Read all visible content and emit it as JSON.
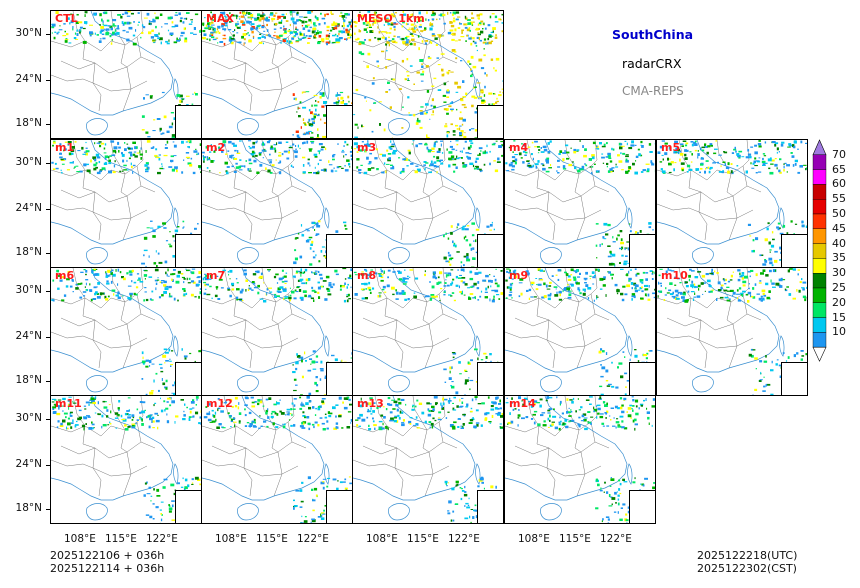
{
  "title_block": {
    "region": "SouthChina",
    "variable": "radarCRX",
    "model": "CMA-REPS",
    "region_color": "#0000cc",
    "variable_color": "#000000",
    "model_color": "#888888"
  },
  "panels": [
    {
      "label": "CTL"
    },
    {
      "label": "MAX"
    },
    {
      "label": "MESO_1km"
    },
    {
      "label": "m1"
    },
    {
      "label": "m2"
    },
    {
      "label": "m3"
    },
    {
      "label": "m4"
    },
    {
      "label": "m5"
    },
    {
      "label": "m6"
    },
    {
      "label": "m7"
    },
    {
      "label": "m8"
    },
    {
      "label": "m9"
    },
    {
      "label": "m10"
    },
    {
      "label": "m11"
    },
    {
      "label": "m12"
    },
    {
      "label": "m13"
    },
    {
      "label": "m14"
    }
  ],
  "axes": {
    "lat_ticks": [
      "30°N",
      "24°N",
      "18°N"
    ],
    "lon_ticks": [
      "108°E",
      "115°E",
      "122°E"
    ]
  },
  "colorbar": {
    "levels": [
      "10",
      "15",
      "20",
      "25",
      "30",
      "35",
      "40",
      "45",
      "50",
      "55",
      "60",
      "65",
      "70"
    ],
    "colors": [
      "#1e96f0",
      "#00c8f0",
      "#00e664",
      "#00b400",
      "#008200",
      "#ffff00",
      "#e6c800",
      "#ff9600",
      "#ff3200",
      "#e60000",
      "#c80000",
      "#ff00ff",
      "#9600b4",
      "#a07be0"
    ]
  },
  "footer": {
    "init_line1": "2025122106  +  036h",
    "init_line2": "2025122114  +  036h",
    "valid_utc": "2025122218(UTC)",
    "valid_cst": "2025122302(CST)"
  }
}
